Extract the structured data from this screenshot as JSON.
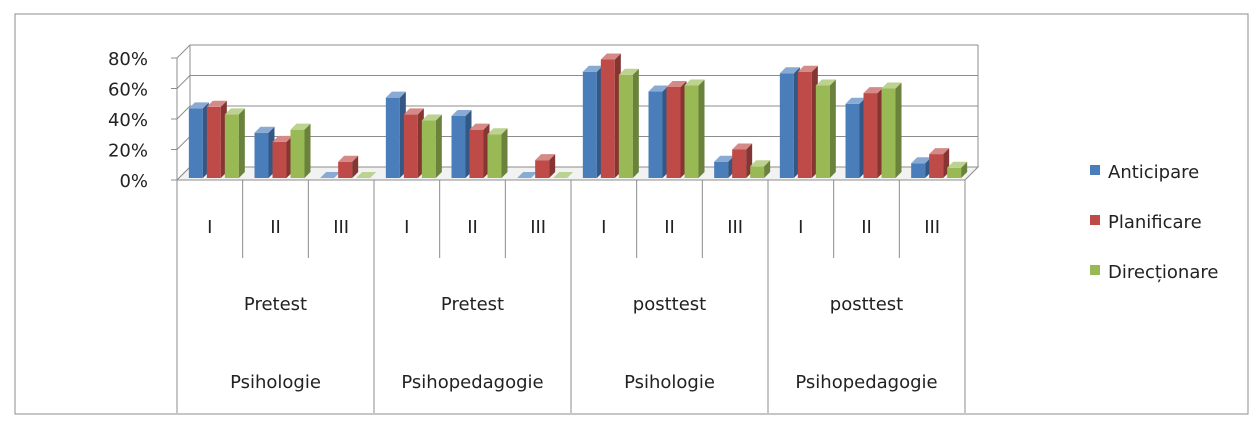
{
  "chart_data": {
    "type": "bar",
    "title": "",
    "xlabel": "",
    "ylabel": "",
    "ylim": [
      0,
      80
    ],
    "y_ticks": [
      {
        "value": 0,
        "label": "0%"
      },
      {
        "value": 20,
        "label": "20%"
      },
      {
        "value": 40,
        "label": "40%"
      },
      {
        "value": 60,
        "label": "60%"
      },
      {
        "value": 80,
        "label": "80%"
      }
    ],
    "grid": true,
    "legend_position": "right",
    "categories": [
      "I",
      "II",
      "III",
      "I",
      "II",
      "III",
      "I",
      "II",
      "III",
      "I",
      "II",
      "III"
    ],
    "category_groups": [
      {
        "label": "Pretest",
        "span": 3
      },
      {
        "label": "Pretest",
        "span": 3
      },
      {
        "label": "posttest",
        "span": 3
      },
      {
        "label": "posttest",
        "span": 3
      }
    ],
    "category_supergroups": [
      {
        "label": "Psihologie",
        "span": 3
      },
      {
        "label": "Psihopedagogie",
        "span": 3
      },
      {
        "label": "Psihologie",
        "span": 3
      },
      {
        "label": "Psihopedagogie",
        "span": 3
      }
    ],
    "series": [
      {
        "name": "Anticipare",
        "color": "#4a7ebb",
        "values": [
          47,
          31,
          0,
          54,
          42,
          0,
          71,
          58,
          12,
          70,
          50,
          11
        ]
      },
      {
        "name": "Planificare",
        "color": "#be4b48",
        "values": [
          48,
          25,
          12,
          43,
          33,
          13,
          79,
          61,
          20,
          71,
          57,
          17
        ]
      },
      {
        "name": "Direcționare",
        "color": "#98b954",
        "values": [
          43,
          33,
          0,
          39,
          30,
          0,
          69,
          62,
          9,
          62,
          60,
          8
        ]
      }
    ]
  }
}
